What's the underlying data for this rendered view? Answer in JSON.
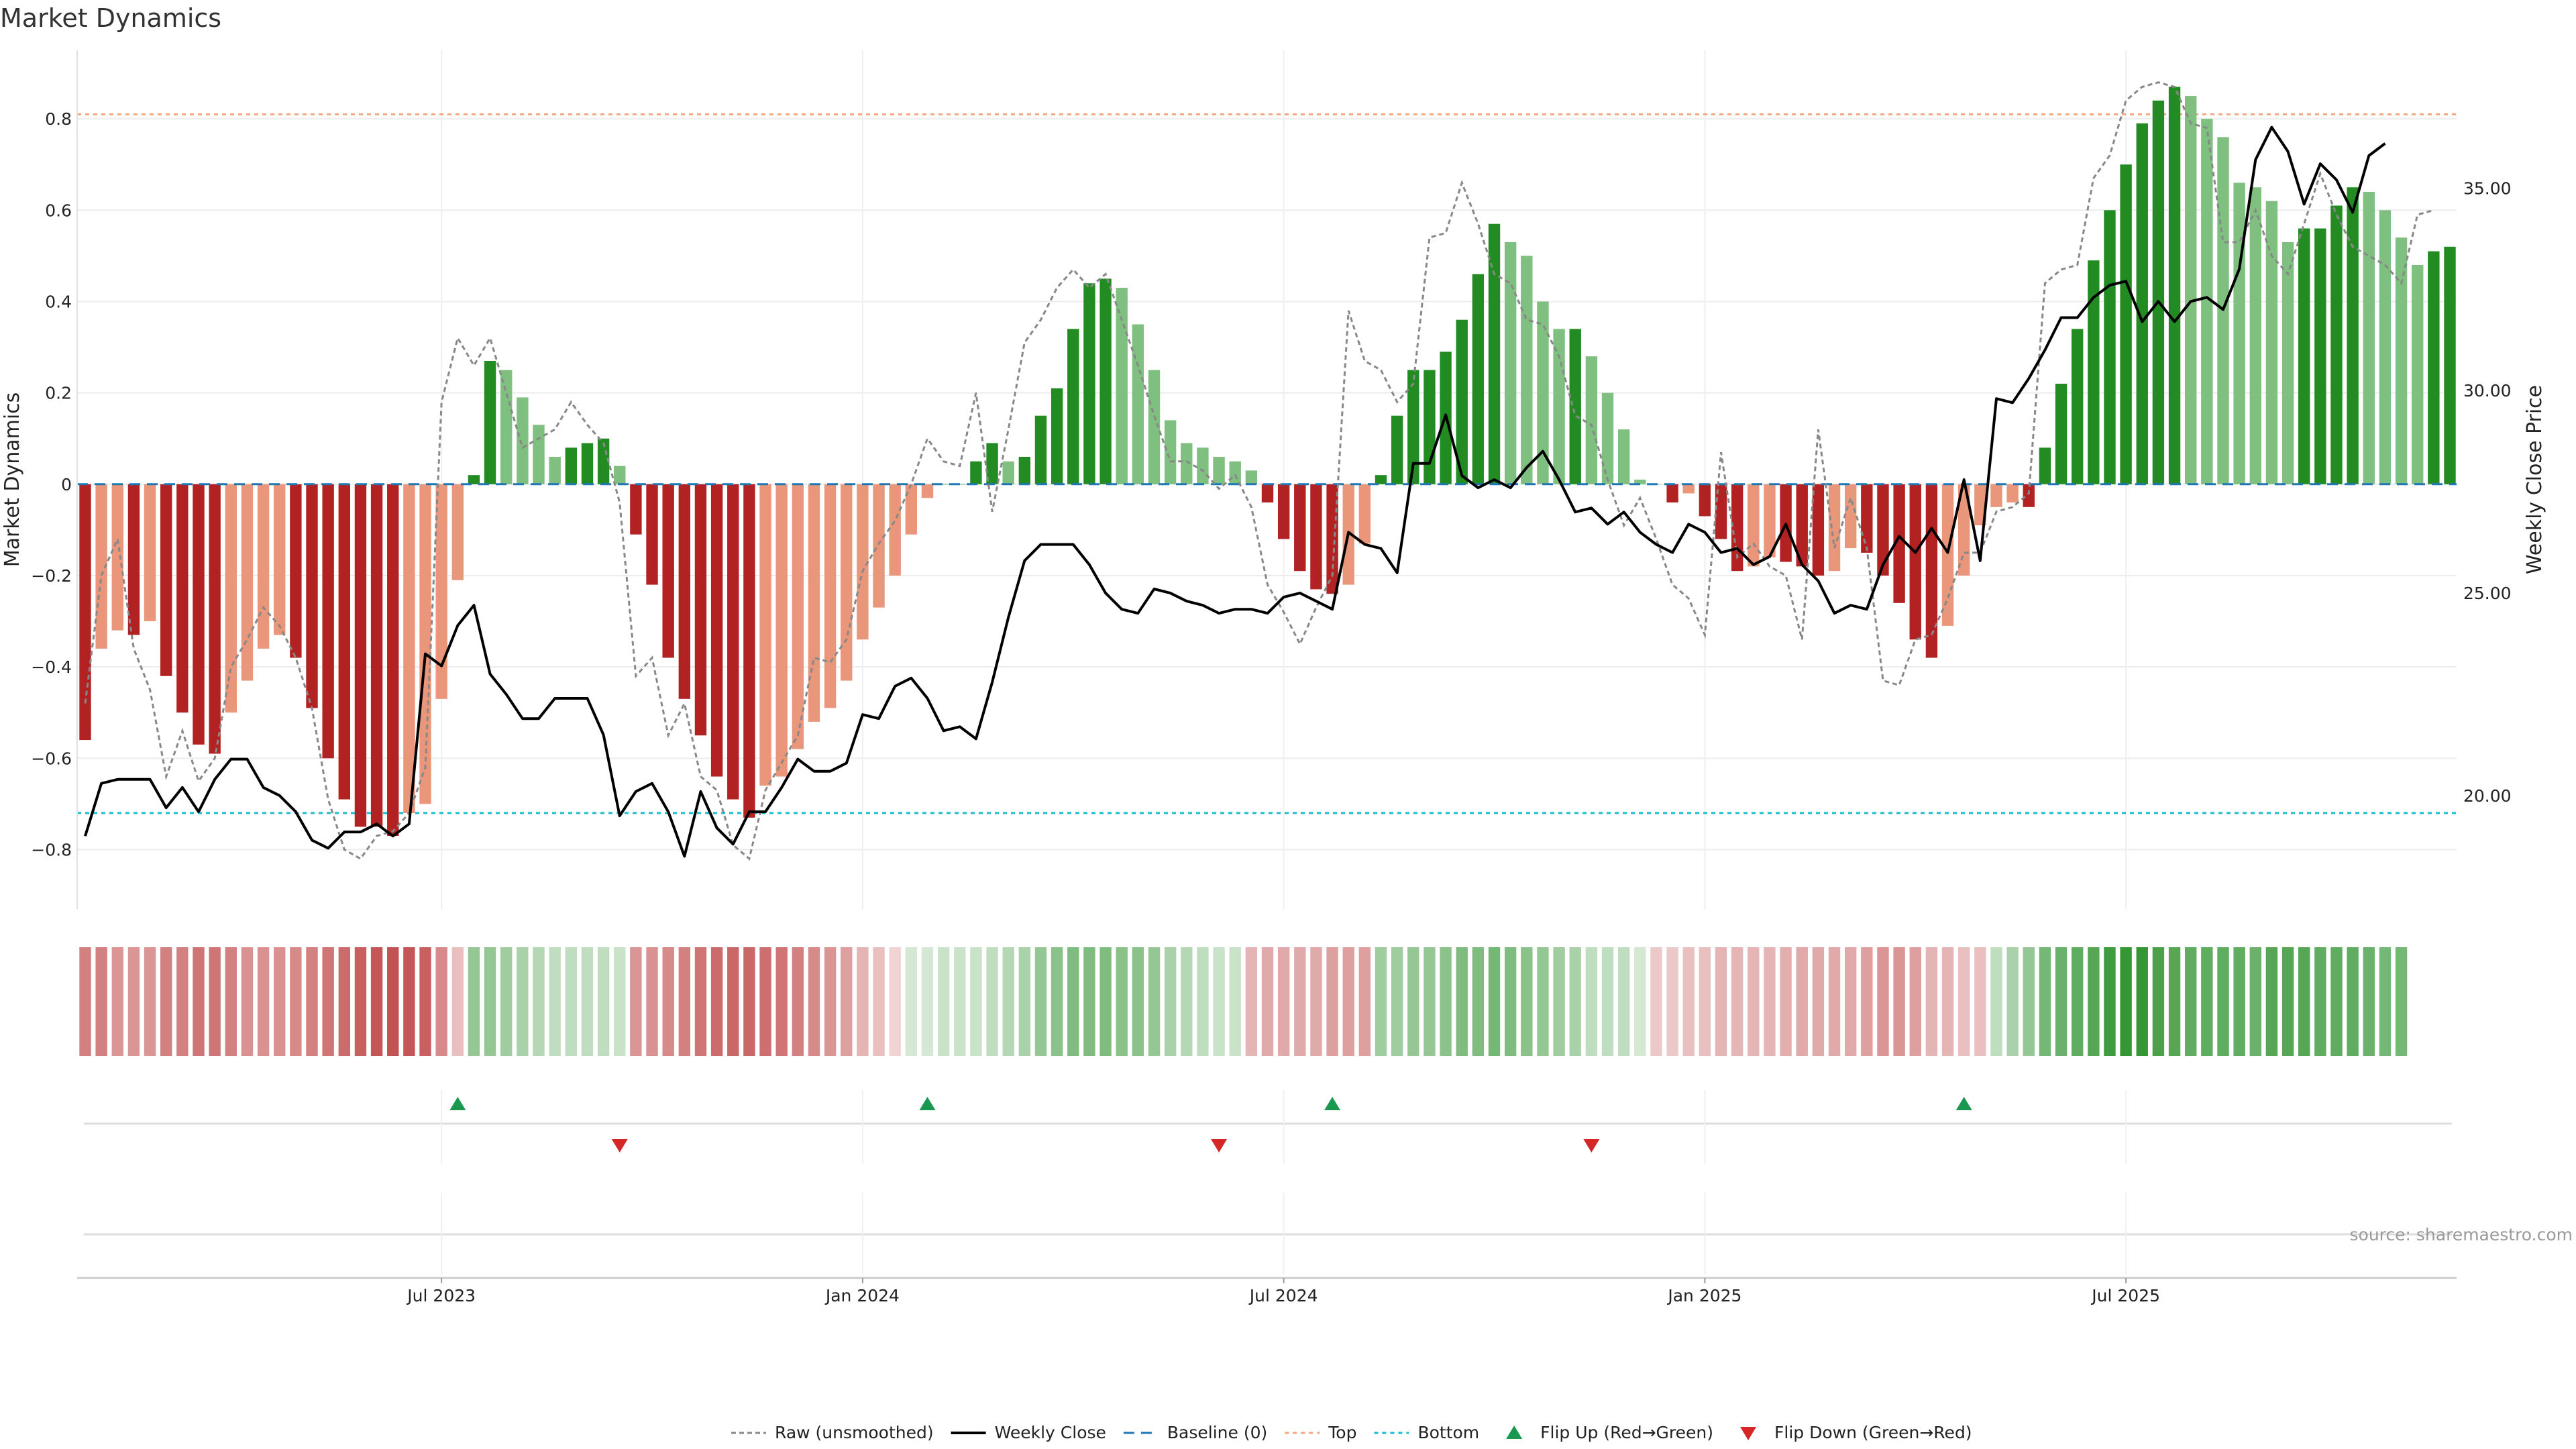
{
  "chart_data": {
    "type": "bar",
    "title": "Market Dynamics",
    "ylabel": "Market Dynamics",
    "y2label": "Weekly Close Price",
    "ylim": [
      -0.93,
      0.95
    ],
    "y2lim": [
      17.2,
      38.4
    ],
    "yticks": [
      {
        "v": 0.8,
        "label": "0.8"
      },
      {
        "v": 0.6,
        "label": "0.6"
      },
      {
        "v": 0.4,
        "label": "0.4"
      },
      {
        "v": 0.2,
        "label": "0.2"
      },
      {
        "v": 0,
        "label": "0"
      },
      {
        "v": -0.2,
        "label": "−0.2"
      },
      {
        "v": -0.4,
        "label": "−0.4"
      },
      {
        "v": -0.6,
        "label": "−0.6"
      },
      {
        "v": -0.8,
        "label": "−0.8"
      }
    ],
    "y2ticks": [
      {
        "v": 20,
        "label": "20.00"
      },
      {
        "v": 25,
        "label": "25.00"
      },
      {
        "v": 30,
        "label": "30.00"
      },
      {
        "v": 35,
        "label": "35.00"
      }
    ],
    "xticks": [
      {
        "week": 22,
        "label": "Jul 2023"
      },
      {
        "week": 48,
        "label": "Jan 2024"
      },
      {
        "week": 74,
        "label": "Jul 2024"
      },
      {
        "week": 100,
        "label": "Jan 2025"
      },
      {
        "week": 126,
        "label": "Jul 2025"
      }
    ],
    "top_threshold": 0.81,
    "bottom_threshold": -0.72,
    "baseline": 0,
    "colors": {
      "dark_red": "#b22222",
      "light_red": "#e9967a",
      "dark_green": "#228b22",
      "light_green": "#7fbf7f",
      "raw": "#888888",
      "close": "#000000",
      "baseline": "#1f77b4",
      "top": "#f4a582",
      "bottom": "#17becf",
      "flip_up": "#1a9850",
      "flip_down": "#d62728"
    },
    "bar_values": [
      -0.56,
      -0.36,
      -0.32,
      -0.33,
      -0.3,
      -0.42,
      -0.5,
      -0.57,
      -0.59,
      -0.5,
      -0.43,
      -0.36,
      -0.33,
      -0.38,
      -0.49,
      -0.6,
      -0.69,
      -0.75,
      -0.75,
      -0.77,
      -0.72,
      -0.7,
      -0.47,
      -0.21,
      0.02,
      0.27,
      0.25,
      0.19,
      0.13,
      0.06,
      0.08,
      0.09,
      0.1,
      0.04,
      -0.11,
      -0.22,
      -0.38,
      -0.47,
      -0.55,
      -0.64,
      -0.69,
      -0.73,
      -0.66,
      -0.64,
      -0.58,
      -0.52,
      -0.49,
      -0.43,
      -0.34,
      -0.27,
      -0.2,
      -0.11,
      -0.03,
      0,
      0,
      0.05,
      0.09,
      0.05,
      0.06,
      0.15,
      0.21,
      0.34,
      0.44,
      0.45,
      0.43,
      0.35,
      0.25,
      0.14,
      0.09,
      0.08,
      0.06,
      0.05,
      0.03,
      -0.04,
      -0.12,
      -0.19,
      -0.23,
      -0.24,
      -0.22,
      -0.13,
      0.02,
      0.15,
      0.25,
      0.25,
      0.29,
      0.36,
      0.46,
      0.57,
      0.53,
      0.5,
      0.4,
      0.34,
      0.34,
      0.28,
      0.2,
      0.12,
      0.01,
      0,
      -0.04,
      -0.02,
      -0.07,
      -0.12,
      -0.19,
      -0.18,
      -0.16,
      -0.17,
      -0.18,
      -0.2,
      -0.19,
      -0.14,
      -0.15,
      -0.2,
      -0.26,
      -0.34,
      -0.38,
      -0.31,
      -0.2,
      -0.09,
      -0.05,
      -0.04,
      -0.05,
      0.08,
      0.22,
      0.34,
      0.49,
      0.6,
      0.7,
      0.79,
      0.84,
      0.87,
      0.85,
      0.8,
      0.76,
      0.66,
      0.65,
      0.62,
      0.53,
      0.56,
      0.56,
      0.61,
      0.65,
      0.64,
      0.6,
      0.54,
      0.48,
      0.51,
      0.52
    ],
    "raw_values": [
      -0.48,
      -0.2,
      -0.12,
      -0.36,
      -0.45,
      -0.64,
      -0.54,
      -0.65,
      -0.6,
      -0.4,
      -0.34,
      -0.27,
      -0.31,
      -0.38,
      -0.49,
      -0.69,
      -0.8,
      -0.82,
      -0.77,
      -0.76,
      -0.72,
      -0.62,
      0.18,
      0.32,
      0.26,
      0.32,
      0.2,
      0.08,
      0.1,
      0.12,
      0.18,
      0.13,
      0.09,
      -0.04,
      -0.42,
      -0.38,
      -0.55,
      -0.48,
      -0.64,
      -0.67,
      -0.79,
      -0.82,
      -0.67,
      -0.61,
      -0.55,
      -0.38,
      -0.39,
      -0.34,
      -0.19,
      -0.13,
      -0.08,
      0,
      0.1,
      0.05,
      0.04,
      0.2,
      -0.06,
      0.12,
      0.31,
      0.36,
      0.43,
      0.47,
      0.43,
      0.46,
      0.36,
      0.26,
      0.15,
      0.05,
      0.05,
      0.03,
      -0.01,
      0.02,
      -0.05,
      -0.22,
      -0.28,
      -0.35,
      -0.27,
      -0.2,
      0.38,
      0.27,
      0.25,
      0.18,
      0.22,
      0.54,
      0.55,
      0.66,
      0.57,
      0.46,
      0.44,
      0.36,
      0.35,
      0.28,
      0.15,
      0.13,
      0.01,
      -0.09,
      -0.03,
      -0.12,
      -0.22,
      -0.25,
      -0.33,
      0.07,
      -0.16,
      -0.13,
      -0.18,
      -0.2,
      -0.34,
      0.12,
      -0.14,
      -0.03,
      -0.14,
      -0.43,
      -0.44,
      -0.34,
      -0.33,
      -0.25,
      -0.15,
      -0.15,
      -0.06,
      -0.05,
      -0.02,
      0.44,
      0.47,
      0.48,
      0.67,
      0.72,
      0.84,
      0.87,
      0.88,
      0.87,
      0.79,
      0.78,
      0.53,
      0.53,
      0.6,
      0.5,
      0.46,
      0.57,
      0.68,
      0.59,
      0.52,
      0.5,
      0.48,
      0.44,
      0.59,
      0.6
    ],
    "close_values": [
      19.0,
      20.3,
      20.4,
      20.4,
      20.4,
      19.7,
      20.2,
      19.6,
      20.4,
      20.9,
      20.9,
      20.2,
      20.0,
      19.6,
      18.9,
      18.7,
      19.1,
      19.1,
      19.3,
      19.0,
      19.3,
      23.5,
      23.2,
      24.2,
      24.7,
      23.0,
      22.5,
      21.9,
      21.9,
      22.4,
      22.4,
      22.4,
      21.5,
      19.5,
      20.1,
      20.3,
      19.6,
      18.5,
      20.1,
      19.2,
      18.8,
      19.6,
      19.6,
      20.2,
      20.9,
      20.6,
      20.6,
      20.8,
      22.0,
      21.9,
      22.7,
      22.9,
      22.4,
      21.6,
      21.7,
      21.4,
      22.8,
      24.4,
      25.8,
      26.2,
      26.2,
      26.2,
      25.7,
      25.0,
      24.6,
      24.5,
      25.1,
      25.0,
      24.8,
      24.7,
      24.5,
      24.6,
      24.6,
      24.5,
      24.9,
      25.0,
      24.8,
      24.6,
      26.5,
      26.2,
      26.1,
      25.5,
      28.2,
      28.2,
      29.4,
      27.9,
      27.6,
      27.8,
      27.6,
      28.1,
      28.5,
      27.8,
      27.0,
      27.1,
      26.7,
      27.0,
      26.5,
      26.2,
      26.0,
      26.7,
      26.5,
      26.0,
      26.1,
      25.7,
      25.9,
      26.7,
      25.7,
      25.3,
      24.5,
      24.7,
      24.6,
      25.7,
      26.4,
      26.0,
      26.6,
      26.0,
      27.8,
      25.8,
      29.8,
      29.7,
      30.3,
      31.0,
      31.8,
      31.8,
      32.3,
      32.6,
      32.7,
      31.7,
      32.2,
      31.7,
      32.2,
      32.3,
      32.0,
      33.0,
      35.7,
      36.5,
      35.9,
      34.6,
      35.6,
      35.2,
      34.4,
      35.8,
      36.1
    ],
    "shade_values": [
      -0.5,
      -0.5,
      -0.4,
      -0.4,
      -0.4,
      -0.5,
      -0.5,
      -0.55,
      -0.55,
      -0.5,
      -0.42,
      -0.42,
      -0.42,
      -0.45,
      -0.5,
      -0.55,
      -0.6,
      -0.65,
      -0.7,
      -0.72,
      -0.7,
      -0.65,
      -0.45,
      -0.2,
      0.4,
      0.4,
      0.35,
      0.3,
      0.25,
      0.2,
      0.2,
      0.2,
      0.2,
      0.15,
      -0.4,
      -0.42,
      -0.45,
      -0.5,
      -0.55,
      -0.6,
      -0.62,
      -0.62,
      -0.58,
      -0.55,
      -0.5,
      -0.45,
      -0.4,
      -0.35,
      -0.25,
      -0.2,
      -0.1,
      0.1,
      0.1,
      0.15,
      0.15,
      0.15,
      0.2,
      0.25,
      0.3,
      0.4,
      0.45,
      0.5,
      0.5,
      0.5,
      0.45,
      0.45,
      0.4,
      0.3,
      0.25,
      0.2,
      0.15,
      0.15,
      -0.25,
      -0.3,
      -0.3,
      -0.3,
      -0.3,
      -0.35,
      -0.35,
      -0.35,
      0.35,
      0.35,
      0.4,
      0.4,
      0.45,
      0.5,
      0.5,
      0.55,
      0.5,
      0.45,
      0.4,
      0.35,
      0.3,
      0.2,
      0.2,
      0.2,
      0.1,
      -0.15,
      -0.15,
      -0.2,
      -0.2,
      -0.25,
      -0.25,
      -0.25,
      -0.25,
      -0.28,
      -0.3,
      -0.3,
      -0.3,
      -0.3,
      -0.35,
      -0.4,
      -0.4,
      -0.35,
      -0.25,
      -0.25,
      -0.2,
      -0.2,
      0.2,
      0.3,
      0.4,
      0.55,
      0.6,
      0.65,
      0.7,
      0.8,
      0.85,
      0.85,
      0.75,
      0.7,
      0.65,
      0.65,
      0.65,
      0.65,
      0.6,
      0.7,
      0.7,
      0.7,
      0.65,
      0.65,
      0.65,
      0.6,
      0.55,
      0.55
    ],
    "flip_up_weeks": [
      23,
      52,
      77,
      116
    ],
    "flip_down_weeks": [
      33,
      70,
      93
    ],
    "legend": [
      {
        "key": "raw",
        "label": "Raw (unsmoothed)"
      },
      {
        "key": "close",
        "label": "Weekly Close"
      },
      {
        "key": "baseline",
        "label": "Baseline (0)"
      },
      {
        "key": "top",
        "label": "Top"
      },
      {
        "key": "bottom",
        "label": "Bottom"
      },
      {
        "key": "flip_up",
        "label": "Flip Up (Red→Green)"
      },
      {
        "key": "flip_down",
        "label": "Flip Down (Green→Red)"
      }
    ],
    "source": "source: sharemaestro.com"
  }
}
